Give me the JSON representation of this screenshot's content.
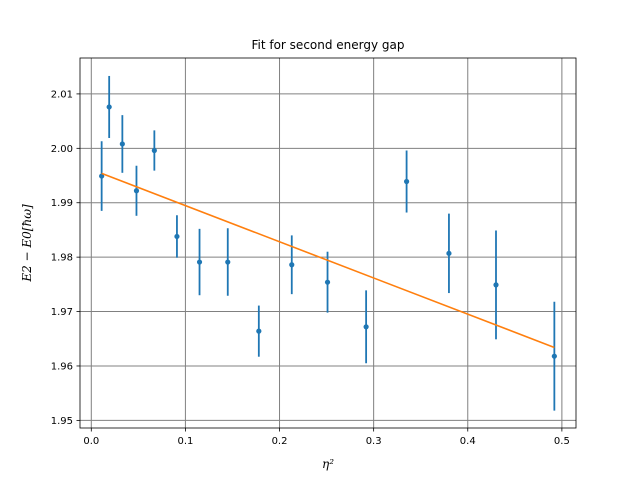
{
  "chart_data": {
    "type": "scatter",
    "title": "Fit for second energy gap",
    "xlabel": "η²",
    "ylabel": "E2 − E0[ħω]",
    "xlim": [
      -0.012,
      0.515
    ],
    "ylim": [
      1.9486,
      2.0166
    ],
    "xticks": [
      0.0,
      0.1,
      0.2,
      0.3,
      0.4,
      0.5
    ],
    "xtick_labels": [
      "0.0",
      "0.1",
      "0.2",
      "0.3",
      "0.4",
      "0.5"
    ],
    "yticks": [
      1.95,
      1.96,
      1.97,
      1.98,
      1.99,
      2.0,
      2.01
    ],
    "ytick_labels": [
      "1.95",
      "1.96",
      "1.97",
      "1.98",
      "1.99",
      "2.00",
      "2.01"
    ],
    "grid": true,
    "legend": "none",
    "series": [
      {
        "kind": "errorbar",
        "color": "#1f77b4",
        "points": [
          {
            "x": 0.011,
            "y": 1.9949,
            "err": 0.0064
          },
          {
            "x": 0.019,
            "y": 2.0076,
            "err": 0.0057
          },
          {
            "x": 0.033,
            "y": 2.0008,
            "err": 0.0053
          },
          {
            "x": 0.048,
            "y": 1.9922,
            "err": 0.0046
          },
          {
            "x": 0.067,
            "y": 1.9996,
            "err": 0.0037
          },
          {
            "x": 0.091,
            "y": 1.9838,
            "err": 0.0039
          },
          {
            "x": 0.115,
            "y": 1.9791,
            "err": 0.0061
          },
          {
            "x": 0.145,
            "y": 1.9791,
            "err": 0.0062
          },
          {
            "x": 0.178,
            "y": 1.9664,
            "err": 0.0047
          },
          {
            "x": 0.213,
            "y": 1.9786,
            "err": 0.0054
          },
          {
            "x": 0.251,
            "y": 1.9754,
            "err": 0.0056
          },
          {
            "x": 0.292,
            "y": 1.9672,
            "err": 0.0067
          },
          {
            "x": 0.335,
            "y": 1.9939,
            "err": 0.0057
          },
          {
            "x": 0.38,
            "y": 1.9807,
            "err": 0.0073
          },
          {
            "x": 0.43,
            "y": 1.9749,
            "err": 0.01
          },
          {
            "x": 0.492,
            "y": 1.9618,
            "err": 0.01
          }
        ]
      },
      {
        "kind": "line",
        "color": "#ff7f0e",
        "x": [
          0.011,
          0.492
        ],
        "y": [
          1.9954,
          1.9634
        ]
      }
    ]
  }
}
